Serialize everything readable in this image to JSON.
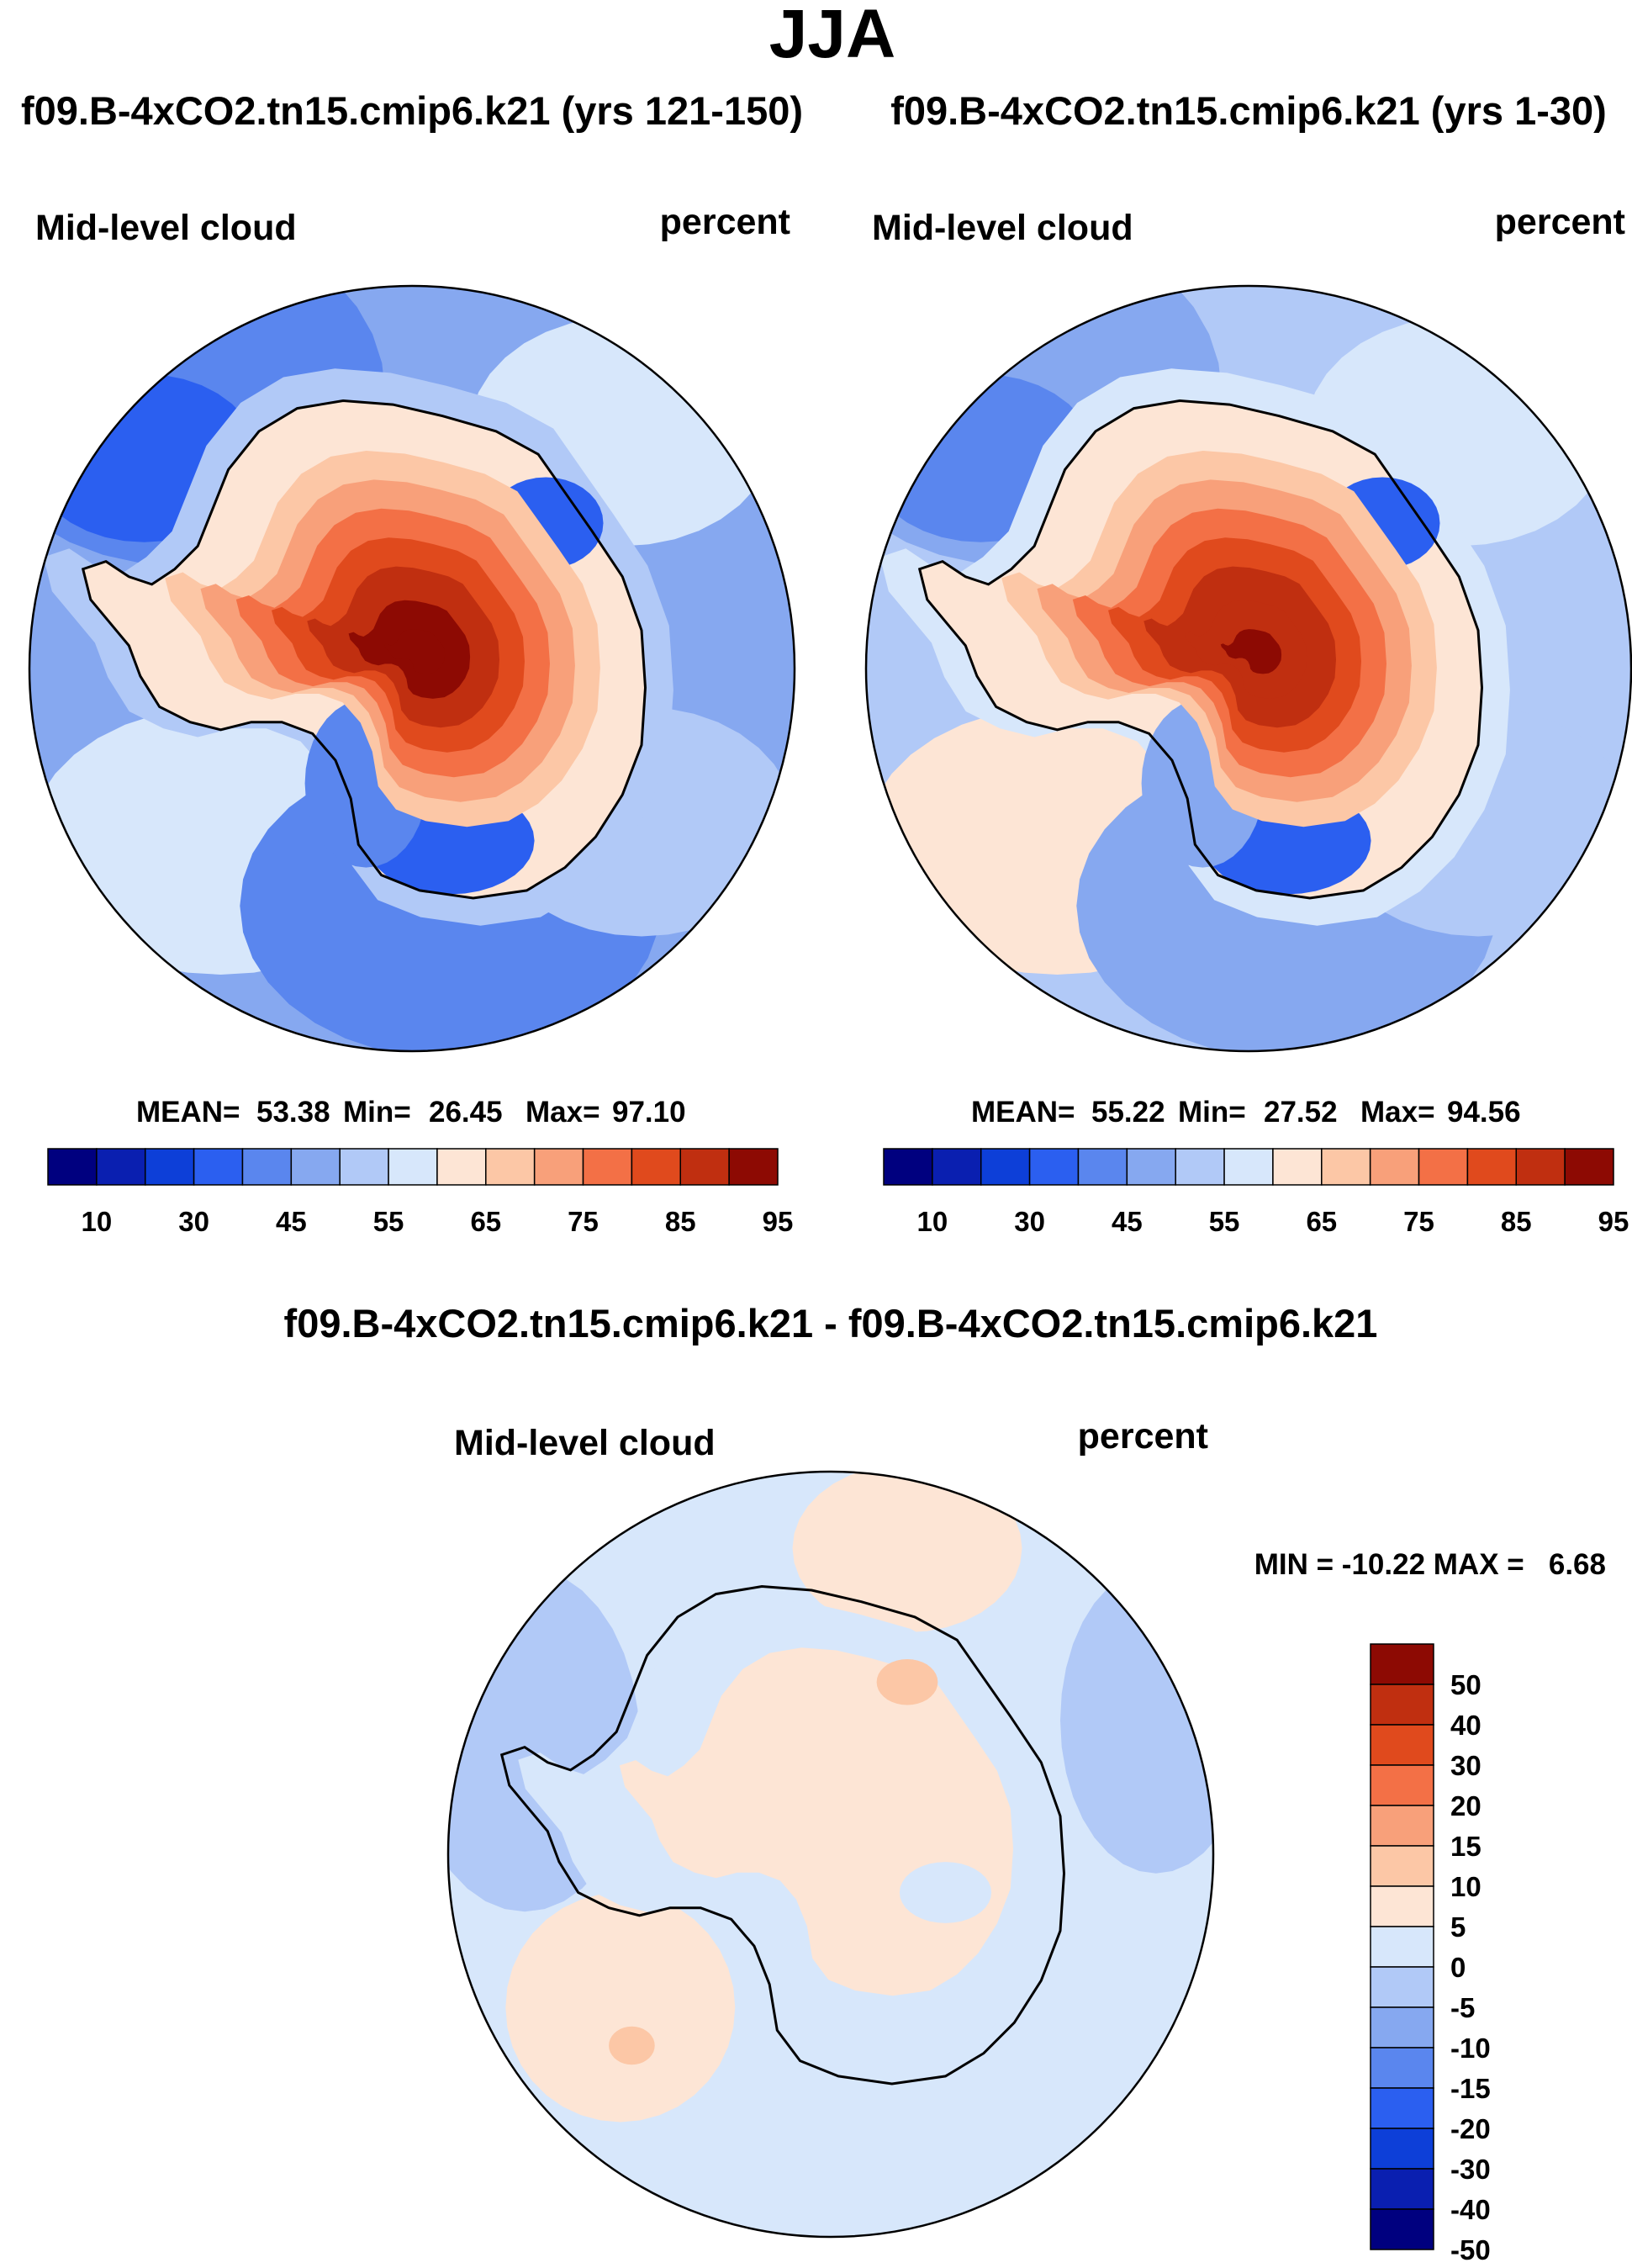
{
  "chart_data": {
    "title": "JJA",
    "panels": [
      {
        "type": "heatmap",
        "projection": "south-polar-stereographic",
        "case": "f09.B-4xCO2.tn15.cmip6.k21 (yrs 121-150)",
        "variable": "Mid-level cloud",
        "units": "percent",
        "stats": {
          "mean_label": "MEAN=",
          "mean": "53.38",
          "min_label": "Min=",
          "min": "26.45",
          "max_label": "Max=",
          "max": "97.10"
        },
        "colorbar": {
          "orientation": "horizontal",
          "levels": [
            10,
            20,
            30,
            40,
            45,
            50,
            55,
            60,
            65,
            70,
            75,
            80,
            85,
            90,
            95
          ],
          "tick_labels": [
            "10",
            "30",
            "45",
            "55",
            "65",
            "75",
            "85",
            "95"
          ]
        },
        "fields": {
          "interior_high": 92,
          "coast_low": 35,
          "ocean_mean": 47
        }
      },
      {
        "type": "heatmap",
        "projection": "south-polar-stereographic",
        "case": "f09.B-4xCO2.tn15.cmip6.k21 (yrs 1-30)",
        "variable": "Mid-level cloud",
        "units": "percent",
        "stats": {
          "mean_label": "MEAN=",
          "mean": "55.22",
          "min_label": "Min=",
          "min": "27.52",
          "max_label": "Max=",
          "max": "94.56"
        },
        "colorbar": {
          "orientation": "horizontal",
          "levels": [
            10,
            20,
            30,
            40,
            45,
            50,
            55,
            60,
            65,
            70,
            75,
            80,
            85,
            90,
            95
          ],
          "tick_labels": [
            "10",
            "30",
            "45",
            "55",
            "65",
            "75",
            "85",
            "95"
          ]
        },
        "fields": {
          "interior_high": 90,
          "coast_low": 37,
          "ocean_mean": 50
        }
      },
      {
        "type": "heatmap",
        "projection": "south-polar-stereographic",
        "case": "f09.B-4xCO2.tn15.cmip6.k21 - f09.B-4xCO2.tn15.cmip6.k21",
        "variable": "Mid-level cloud",
        "units": "percent",
        "stats_text": "MIN = -10.22 MAX =   6.68",
        "colorbar": {
          "orientation": "vertical",
          "levels": [
            -50,
            -40,
            -30,
            -20,
            -15,
            -10,
            -5,
            0,
            5,
            10,
            15,
            20,
            30,
            40,
            50
          ],
          "tick_labels": [
            "50",
            "40",
            "30",
            "20",
            "15",
            "10",
            "5",
            "0",
            "-5",
            "-10",
            "-15",
            "-20",
            "-30",
            "-40",
            "-50"
          ]
        },
        "fields": {
          "dominant_range": [
            -5,
            5
          ]
        }
      }
    ],
    "palette": [
      "#00007f",
      "#0a1fb0",
      "#0d3fd8",
      "#2b5ff0",
      "#5a86ee",
      "#86a8f0",
      "#b1c9f7",
      "#d7e7fb",
      "#fde5d5",
      "#fcc7a6",
      "#f8a07a",
      "#f37046",
      "#e04a1d",
      "#c02f10",
      "#8d0a03"
    ],
    "coastline_color": "#000000"
  }
}
